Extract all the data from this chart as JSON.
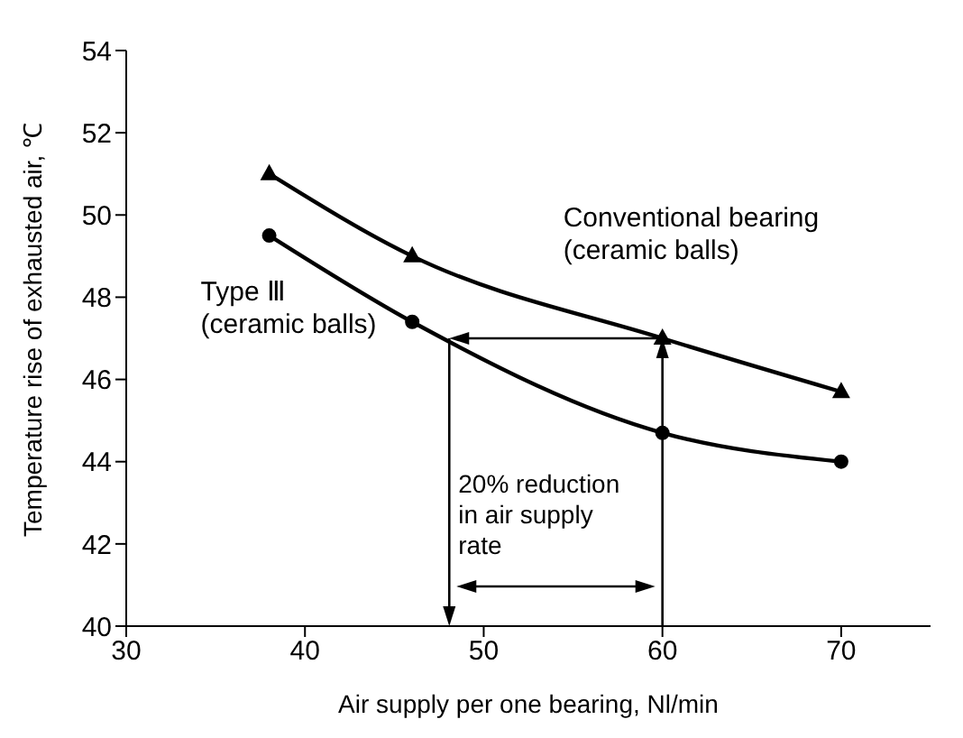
{
  "chart_data": {
    "type": "line",
    "xlabel": "Air supply per one bearing, Nl/min",
    "ylabel": "Temperature rise of exhausted air, ℃",
    "x": [
      38,
      46,
      60,
      70
    ],
    "series": [
      {
        "name": "Conventional bearing (ceramic balls)",
        "color": "#000000",
        "marker": "triangle",
        "values": [
          51,
          49,
          47,
          45.7
        ]
      },
      {
        "name": "Type Ⅲ (ceramic balls)",
        "color": "#000000",
        "marker": "circle",
        "values": [
          49.5,
          47.4,
          44.7,
          44
        ]
      }
    ],
    "xlim": [
      30,
      75
    ],
    "xticks": [
      30,
      40,
      50,
      60,
      70
    ],
    "ylim": [
      40,
      54
    ],
    "yticks": [
      40,
      42,
      44,
      46,
      48,
      50,
      52,
      54
    ],
    "grid": false,
    "legend": false,
    "line_style": "solid",
    "annotations": [
      "20% reduction in air supply rate"
    ]
  }
}
